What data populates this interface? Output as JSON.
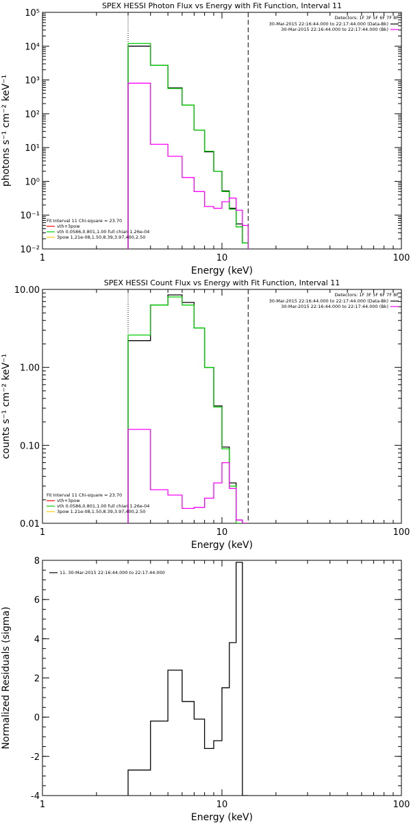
{
  "chart_data": [
    {
      "type": "line",
      "title": "SPEX HESSI Photon Flux vs Energy with Fit Function, Interval 11",
      "xlabel": "Energy (keV)",
      "ylabel": "photons s⁻¹ cm⁻² keV⁻¹",
      "xscale": "log",
      "yscale": "log",
      "xlim": [
        1,
        100
      ],
      "ylim": [
        0.01,
        100000
      ],
      "x_ticks": [
        1,
        10,
        100
      ],
      "x_tick_labels": [
        "1",
        "10",
        "100"
      ],
      "y_ticks": [
        0.01,
        0.1,
        1,
        10,
        100,
        1000,
        10000,
        100000
      ],
      "y_tick_labels": [
        "10⁻²",
        "10⁻¹",
        "10⁰",
        "10¹",
        "10²",
        "10³",
        "10⁴",
        "10⁵"
      ],
      "x_edges": [
        3.0,
        4.0,
        5.0,
        6.0,
        7.0,
        8.0,
        9.0,
        10.0,
        11.0,
        12.0,
        13.0,
        14.0
      ],
      "legend_topright": {
        "heading": "Detectors: 1F 3F 5F 6F 7F 8F",
        "entries": [
          {
            "label": "30-Mar-2015 22:16:44.000 to 22:17:44.000 (Data-Bk)",
            "color": "#000000"
          },
          {
            "label": "30-Mar-2015 22:16:44.000 to 22:17:44.000 (Bk)",
            "color": "#ff00ff"
          }
        ]
      },
      "legend_bottomleft": {
        "heading": "Fit Interval 11   Chi-square = 23.70",
        "entries": [
          {
            "label": "vth+3pow",
            "color": "#ff0000"
          },
          {
            "label": "vth 0.0586,0.801,1.00  full chian 1.26e-04",
            "color": "#00cc00"
          },
          {
            "label": "3pow 1.21e-08,1.50,8.39,3.97,400,2.50",
            "color": "#ffcc00"
          }
        ]
      },
      "vlines": [
        {
          "x": 3.0,
          "style": "dotted"
        },
        {
          "x": 14.0,
          "style": "dashed"
        }
      ],
      "series": [
        {
          "color": "#000000",
          "values": [
            10000,
            2700,
            580,
            180,
            33,
            7.5,
            2.0,
            0.52,
            0.16,
            0.055,
            0.015
          ]
        },
        {
          "color": "#00cc00",
          "values": [
            12000,
            2700,
            560,
            180,
            33,
            7.8,
            2.0,
            0.5,
            0.15,
            0.045,
            0.015
          ]
        },
        {
          "color": "#ff00ff",
          "values": [
            800,
            12.5,
            5.5,
            1.3,
            0.5,
            0.18,
            0.16,
            0.25,
            0.32,
            0.14,
            0.05
          ]
        }
      ]
    },
    {
      "type": "line",
      "title": "SPEX HESSI Count Flux vs Energy with Fit Function, Interval 11",
      "xlabel": "Energy (keV)",
      "ylabel": "counts s⁻¹ cm⁻² keV⁻¹",
      "xscale": "log",
      "yscale": "log",
      "xlim": [
        1,
        100
      ],
      "ylim": [
        0.01,
        10
      ],
      "x_ticks": [
        1,
        10,
        100
      ],
      "x_tick_labels": [
        "1",
        "10",
        "100"
      ],
      "y_ticks": [
        0.01,
        0.1,
        1,
        10
      ],
      "y_tick_labels": [
        "0.01",
        "0.10",
        "1.00",
        "10.00"
      ],
      "x_edges": [
        3.0,
        4.0,
        5.0,
        6.0,
        7.0,
        8.0,
        9.0,
        10.0,
        11.0,
        12.0,
        13.0,
        14.0
      ],
      "legend_topright": {
        "heading": "Detectors: 1F 3F 5F 6F 7F 8F",
        "entries": [
          {
            "label": "30-Mar-2015 22:16:44.000 to 22:17:44.000 (Data-Bk)",
            "color": "#000000"
          },
          {
            "label": "30-Mar-2015 22:16:44.000 to 22:17:44.000 (Bk)",
            "color": "#ff00ff"
          }
        ]
      },
      "legend_bottomleft": {
        "heading": "Fit Interval 11   Chi-square = 23.70",
        "entries": [
          {
            "label": "vth+3pow",
            "color": "#ff0000"
          },
          {
            "label": "vth 0.0586,0.801,1.00  full chian 1.26e-04",
            "color": "#00cc00"
          },
          {
            "label": "3pow 1.21e-08,1.50,8.39,3.97,400,2.50",
            "color": "#ffcc00"
          }
        ]
      },
      "vlines": [
        {
          "x": 3.0,
          "style": "dotted"
        },
        {
          "x": 14.0,
          "style": "dashed"
        }
      ],
      "series": [
        {
          "color": "#000000",
          "values": [
            2.2,
            6.3,
            8.5,
            6.8,
            3.2,
            1.0,
            0.32,
            0.095,
            0.033,
            0.011,
            0.0095
          ]
        },
        {
          "color": "#00cc00",
          "values": [
            2.6,
            6.3,
            8.0,
            6.3,
            3.2,
            1.0,
            0.31,
            0.09,
            0.03,
            0.01,
            0.0095
          ]
        },
        {
          "color": "#ff00ff",
          "values": [
            0.16,
            0.027,
            0.023,
            0.0155,
            0.016,
            0.021,
            0.033,
            0.06,
            0.028,
            0.011,
            0.009
          ]
        }
      ]
    },
    {
      "type": "line",
      "title": "",
      "xlabel": "Energy (keV)",
      "ylabel": "Normalized Residuals (sigma)",
      "xscale": "log",
      "yscale": "linear",
      "xlim": [
        1,
        100
      ],
      "ylim": [
        -4,
        8
      ],
      "x_ticks": [
        1,
        10,
        100
      ],
      "x_tick_labels": [
        "1",
        "10",
        "100"
      ],
      "y_ticks": [
        -4,
        -2,
        0,
        2,
        4,
        6,
        8
      ],
      "y_tick_labels": [
        "-4",
        "-2",
        "0",
        "2",
        "4",
        "6",
        "8"
      ],
      "x_edges": [
        3.0,
        4.0,
        5.0,
        6.0,
        7.0,
        8.0,
        9.0,
        10.0,
        11.0,
        12.0,
        13.0,
        14.0
      ],
      "legend_topleft": {
        "entries": [
          {
            "label": "11. 30-Mar-2015 22:16:44.000 to 22:17:44.000",
            "color": "#000000"
          }
        ]
      },
      "series": [
        {
          "color": "#000000",
          "values": [
            -2.7,
            -0.2,
            2.4,
            0.8,
            -0.1,
            -1.6,
            -1.2,
            1.5,
            3.8,
            7.9,
            -4.5
          ]
        }
      ]
    }
  ]
}
